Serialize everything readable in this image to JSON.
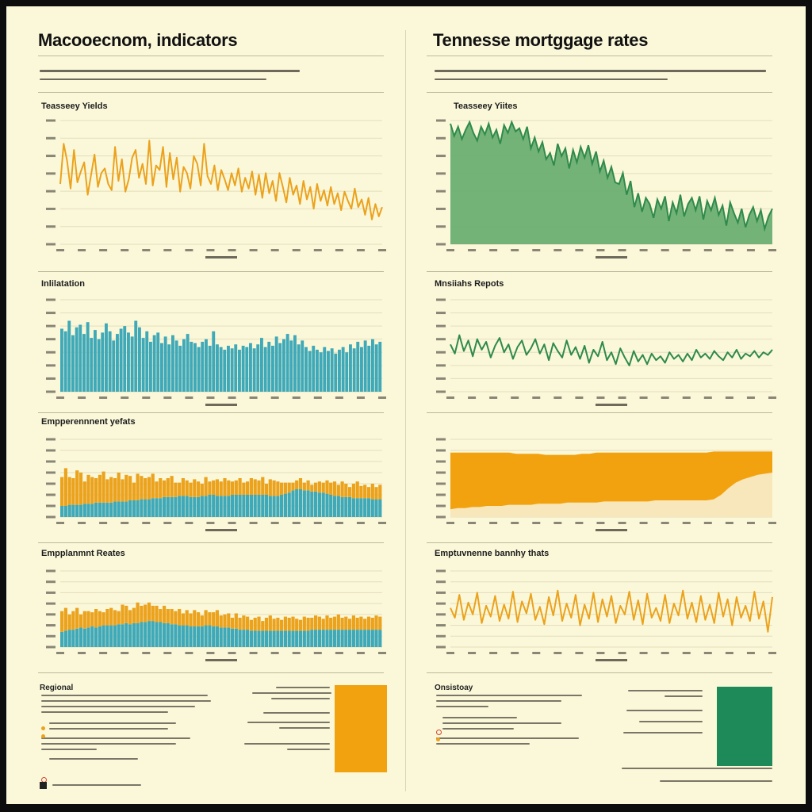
{
  "left": {
    "heading": "Macooecnom, indicators",
    "region_title": "Regional",
    "stat_values": [
      "",
      "",
      ""
    ]
  },
  "right": {
    "heading": "Tennesse mortggage rates",
    "region_title": "Onsistoay",
    "stat_values": [
      "",
      "",
      ""
    ]
  },
  "colors": {
    "orange": "#eba21d",
    "teal": "#3fa9b8",
    "green": "#2f8a4c",
    "green_fill": "#6caf72",
    "amber": "#f2a20f",
    "amber_light": "#f8e7bb",
    "background": "#fbf8da"
  },
  "chart_data": [
    {
      "id": "treasury-yields-left",
      "type": "line",
      "title": "Teasseey Yields",
      "color": "#eba21d",
      "ylim": [
        0,
        8
      ],
      "grid": true,
      "series": [
        {
          "values": [
            3.9,
            6.5,
            5.4,
            3.6,
            6.1,
            4.0,
            4.7,
            5.3,
            3.2,
            4.5,
            5.8,
            3.7,
            4.6,
            4.9,
            3.9,
            3.5,
            6.3,
            4.1,
            5.5,
            3.4,
            4.2,
            5.6,
            6.1,
            4.3,
            5.2,
            3.9,
            6.7,
            3.8,
            5.1,
            4.8,
            6.3,
            3.7,
            5.9,
            4.2,
            5.6,
            3.4,
            5.0,
            4.6,
            3.6,
            5.7,
            5.2,
            3.8,
            6.5,
            4.4,
            3.9,
            5.1,
            3.5,
            4.8,
            4.2,
            3.5,
            4.6,
            3.8,
            4.9,
            3.4,
            4.3,
            3.6,
            4.7,
            3.2,
            4.5,
            3.0,
            4.6,
            3.3,
            4.1,
            2.8,
            4.6,
            3.7,
            2.7,
            4.3,
            3.2,
            3.8,
            2.6,
            4.1,
            2.9,
            3.7,
            2.3,
            3.9,
            2.8,
            3.5,
            2.5,
            3.7,
            2.6,
            3.3,
            2.2,
            3.4,
            2.8,
            2.3,
            3.6,
            2.4,
            2.9,
            1.9,
            3.0,
            1.6,
            2.6,
            1.8,
            2.4
          ]
        }
      ]
    },
    {
      "id": "treasury-yields-right",
      "type": "area",
      "title": "Teasseey Yiites",
      "color": "#2f8a4c",
      "fill": "#6caf72",
      "ylim": [
        0,
        8
      ],
      "grid": true,
      "series": [
        {
          "values": [
            7.8,
            7.0,
            7.6,
            6.8,
            7.4,
            7.9,
            7.2,
            6.7,
            7.6,
            7.1,
            7.8,
            6.9,
            7.4,
            6.5,
            7.7,
            7.2,
            7.9,
            7.3,
            7.5,
            6.8,
            7.6,
            6.2,
            6.9,
            6.0,
            6.6,
            5.5,
            5.9,
            5.1,
            6.5,
            5.7,
            6.2,
            4.9,
            6.1,
            5.3,
            6.3,
            5.6,
            6.4,
            5.2,
            6.0,
            4.7,
            5.4,
            4.3,
            5.0,
            4.0,
            3.9,
            4.6,
            3.2,
            4.1,
            2.4,
            3.3,
            2.1,
            3.0,
            2.6,
            1.7,
            2.9,
            2.3,
            3.1,
            1.5,
            2.7,
            2.0,
            3.2,
            1.8,
            2.6,
            3.0,
            2.2,
            3.1,
            1.6,
            2.8,
            2.2,
            3.0,
            1.9,
            2.5,
            1.2,
            2.7,
            2.0,
            1.4,
            2.3,
            1.1,
            1.9,
            2.4,
            1.5,
            2.2,
            1.0,
            1.8,
            2.3
          ]
        }
      ]
    },
    {
      "id": "inflation",
      "type": "bar",
      "title": "Inlilatation",
      "color": "#3fa9b8",
      "ylim": [
        0,
        7
      ],
      "grid": true,
      "series": [
        {
          "values": [
            4.8,
            4.6,
            5.4,
            4.3,
            4.9,
            5.1,
            4.4,
            5.3,
            4.1,
            4.7,
            4.0,
            4.5,
            5.2,
            4.6,
            3.9,
            4.4,
            4.8,
            5.0,
            4.5,
            4.2,
            5.4,
            4.9,
            4.1,
            4.6,
            3.8,
            4.3,
            4.5,
            3.7,
            4.2,
            3.6,
            4.3,
            3.9,
            3.5,
            4.0,
            4.4,
            3.8,
            3.7,
            3.4,
            3.8,
            4.0,
            3.5,
            4.6,
            3.6,
            3.4,
            3.2,
            3.5,
            3.3,
            3.6,
            3.2,
            3.5,
            3.4,
            3.7,
            3.3,
            3.6,
            4.1,
            3.4,
            3.8,
            3.5,
            4.2,
            3.7,
            4.0,
            4.4,
            3.9,
            4.3,
            3.6,
            3.9,
            3.4,
            3.1,
            3.5,
            3.2,
            3.0,
            3.4,
            3.1,
            3.3,
            2.9,
            3.2,
            3.4,
            3.0,
            3.6,
            3.3,
            3.8,
            3.4,
            3.9,
            3.5,
            4.0,
            3.6,
            3.8
          ]
        }
      ]
    },
    {
      "id": "market-reports",
      "type": "line",
      "title": "Mnsiiahs Repots",
      "color": "#2f8a4c",
      "ylim": [
        0,
        7
      ],
      "grid": true,
      "series": [
        {
          "values": [
            3.6,
            2.9,
            4.3,
            3.1,
            3.9,
            2.7,
            4.0,
            3.2,
            3.8,
            2.6,
            3.5,
            4.1,
            3.0,
            3.6,
            2.5,
            3.4,
            3.9,
            2.8,
            3.3,
            4.0,
            2.9,
            3.6,
            2.4,
            3.7,
            3.1,
            2.6,
            3.9,
            2.8,
            3.4,
            2.5,
            3.5,
            2.2,
            3.2,
            2.7,
            3.8,
            2.4,
            3.0,
            2.1,
            3.3,
            2.6,
            2.0,
            3.1,
            2.3,
            2.8,
            2.1,
            2.9,
            2.4,
            2.7,
            2.2,
            3.0,
            2.5,
            2.8,
            2.3,
            2.9,
            2.4,
            3.2,
            2.6,
            2.9,
            2.5,
            3.1,
            2.7,
            2.4,
            3.0,
            2.6,
            3.2,
            2.5,
            2.9,
            2.7,
            3.1,
            2.6,
            3.0,
            2.8,
            3.2
          ]
        }
      ]
    },
    {
      "id": "employment-rates-left",
      "type": "bar",
      "stacked": true,
      "title": "Empperennnent yefats",
      "ylim": [
        0,
        7
      ],
      "grid": true,
      "series": [
        {
          "color": "#3fa9b8",
          "values": [
            1.0,
            1.0,
            1.1,
            1.1,
            1.1,
            1.1,
            1.2,
            1.2,
            1.2,
            1.3,
            1.3,
            1.3,
            1.3,
            1.3,
            1.4,
            1.4,
            1.4,
            1.4,
            1.5,
            1.5,
            1.5,
            1.6,
            1.6,
            1.6,
            1.7,
            1.7,
            1.7,
            1.8,
            1.8,
            1.8,
            1.8,
            1.9,
            1.9,
            1.9,
            1.8,
            1.8,
            1.8,
            1.9,
            1.9,
            2.0,
            2.0,
            1.9,
            1.9,
            1.9,
            1.9,
            2.0,
            2.0,
            2.0,
            2.0,
            2.0,
            2.0,
            2.0,
            2.0,
            2.0,
            2.0,
            1.9,
            1.9,
            1.9,
            2.0,
            2.1,
            2.2,
            2.4,
            2.5,
            2.5,
            2.4,
            2.4,
            2.3,
            2.3,
            2.2,
            2.2,
            2.1,
            2.0,
            1.9,
            1.9,
            1.8,
            1.8,
            1.8,
            1.7,
            1.7,
            1.7,
            1.7,
            1.7,
            1.6,
            1.6,
            1.6
          ]
        },
        {
          "color": "#eba21d",
          "values": [
            2.6,
            3.4,
            2.5,
            2.4,
            3.1,
            2.9,
            2.0,
            2.6,
            2.4,
            2.2,
            2.5,
            2.8,
            2.1,
            2.3,
            2.1,
            2.6,
            2.0,
            2.4,
            2.2,
            1.6,
            2.4,
            2.1,
            1.9,
            2.0,
            2.2,
            1.5,
            1.8,
            1.5,
            1.7,
            1.9,
            1.3,
            1.2,
            1.6,
            1.4,
            1.3,
            1.6,
            1.4,
            1.1,
            1.7,
            1.2,
            1.3,
            1.5,
            1.3,
            1.6,
            1.4,
            1.2,
            1.3,
            1.5,
            1.1,
            1.2,
            1.5,
            1.4,
            1.3,
            1.6,
            1.0,
            1.5,
            1.4,
            1.3,
            1.1,
            1.0,
            0.9,
            0.7,
            0.8,
            1.0,
            0.7,
            0.9,
            0.6,
            0.8,
            1.0,
            0.9,
            1.2,
            1.1,
            1.3,
            1.0,
            1.4,
            1.2,
            0.9,
            1.3,
            1.5,
            1.1,
            1.2,
            1.0,
            1.4,
            1.1,
            1.3
          ]
        }
      ]
    },
    {
      "id": "mortgage-rate-band",
      "type": "area",
      "title": "",
      "ylim": [
        0,
        7
      ],
      "grid": true,
      "series": [
        {
          "color": "#f8e7bb",
          "values": [
            0.7,
            0.8,
            0.8,
            0.9,
            0.9,
            1.0,
            1.0,
            1.0,
            1.1,
            1.1,
            1.1,
            1.1,
            1.2,
            1.2,
            1.2,
            1.2,
            1.3,
            1.3,
            1.3,
            1.3,
            1.3,
            1.4,
            1.4,
            1.4,
            1.4,
            1.4,
            1.4,
            1.4,
            1.5,
            1.5,
            1.5,
            1.5,
            1.5,
            1.5,
            1.5,
            1.5,
            1.6,
            2.0,
            2.6,
            3.1,
            3.4,
            3.6,
            3.8,
            3.9,
            4.0
          ]
        },
        {
          "color": "#f2a20f",
          "values": [
            5.8,
            5.8,
            5.8,
            5.8,
            5.8,
            5.8,
            5.8,
            5.8,
            5.8,
            5.7,
            5.7,
            5.7,
            5.7,
            5.6,
            5.6,
            5.6,
            5.6,
            5.6,
            5.7,
            5.7,
            5.8,
            5.8,
            5.8,
            5.8,
            5.8,
            5.8,
            5.8,
            5.8,
            5.8,
            5.8,
            5.8,
            5.8,
            5.8,
            5.8,
            5.8,
            5.8,
            5.9,
            5.9,
            5.9,
            5.9,
            5.9,
            5.9,
            5.9,
            5.9,
            5.9
          ]
        }
      ]
    },
    {
      "id": "employment-rates-left-2",
      "type": "bar",
      "stacked": true,
      "title": "Empplanmnt Reates",
      "ylim": [
        0,
        7
      ],
      "grid": true,
      "series": [
        {
          "color": "#3fa9b8",
          "values": [
            1.4,
            1.5,
            1.6,
            1.6,
            1.7,
            1.8,
            1.7,
            1.8,
            1.9,
            1.8,
            1.9,
            2.0,
            2.0,
            2.0,
            2.0,
            2.1,
            2.1,
            2.2,
            2.1,
            2.2,
            2.2,
            2.3,
            2.3,
            2.4,
            2.4,
            2.3,
            2.3,
            2.2,
            2.2,
            2.1,
            2.1,
            2.0,
            2.0,
            2.0,
            1.9,
            1.9,
            1.9,
            1.9,
            2.0,
            2.0,
            1.9,
            1.9,
            1.8,
            1.8,
            1.8,
            1.7,
            1.7,
            1.6,
            1.6,
            1.6,
            1.5,
            1.5,
            1.5,
            1.5,
            1.5,
            1.5,
            1.5,
            1.5,
            1.5,
            1.5,
            1.5,
            1.5,
            1.5,
            1.5,
            1.5,
            1.5,
            1.6,
            1.6,
            1.6,
            1.6,
            1.6,
            1.6,
            1.6,
            1.6,
            1.6,
            1.6,
            1.6,
            1.6,
            1.6,
            1.6,
            1.6,
            1.6,
            1.6,
            1.6,
            1.6
          ]
        },
        {
          "color": "#eba21d",
          "values": [
            1.9,
            2.1,
            1.4,
            1.7,
            1.9,
            1.2,
            1.6,
            1.5,
            1.3,
            1.7,
            1.4,
            1.2,
            1.5,
            1.6,
            1.4,
            1.2,
            1.8,
            1.6,
            1.3,
            1.4,
            1.9,
            1.5,
            1.6,
            1.7,
            1.4,
            1.5,
            1.2,
            1.6,
            1.3,
            1.4,
            1.2,
            1.5,
            1.1,
            1.4,
            1.2,
            1.5,
            1.3,
            1.0,
            1.4,
            1.2,
            1.3,
            1.5,
            1.1,
            1.2,
            1.3,
            1.0,
            1.4,
            1.1,
            1.3,
            1.2,
            1.0,
            1.2,
            1.3,
            0.9,
            1.2,
            1.4,
            1.1,
            1.2,
            1.0,
            1.3,
            1.2,
            1.3,
            1.1,
            1.0,
            1.3,
            1.2,
            1.1,
            1.3,
            1.2,
            1.0,
            1.3,
            1.1,
            1.2,
            1.4,
            1.1,
            1.2,
            1.0,
            1.3,
            1.1,
            1.2,
            1.0,
            1.2,
            1.1,
            1.3,
            1.2
          ]
        }
      ]
    },
    {
      "id": "employment-monthly",
      "type": "line",
      "title": "Emptuvnenne bannhy thats",
      "color": "#eba21d",
      "ylim": [
        0,
        7
      ],
      "grid": true,
      "series": [
        {
          "values": [
            3.6,
            2.7,
            4.8,
            2.5,
            4.1,
            3.0,
            5.0,
            2.2,
            3.8,
            2.8,
            4.7,
            2.4,
            3.9,
            2.6,
            5.1,
            2.3,
            4.2,
            3.1,
            4.9,
            2.5,
            3.7,
            2.1,
            4.6,
            2.9,
            5.2,
            2.4,
            4.0,
            2.7,
            4.8,
            2.0,
            3.9,
            2.6,
            5.0,
            2.3,
            4.4,
            2.8,
            4.7,
            2.2,
            3.8,
            3.0,
            5.1,
            2.5,
            4.3,
            2.1,
            4.9,
            2.7,
            3.6,
            2.4,
            4.8,
            2.2,
            4.0,
            2.9,
            5.2,
            2.6,
            4.1,
            2.3,
            4.7,
            2.5,
            3.9,
            2.2,
            5.0,
            2.8,
            4.4,
            2.0,
            4.6,
            2.7,
            3.8,
            2.4,
            5.1,
            2.6,
            4.2,
            1.4,
            4.6
          ]
        }
      ]
    }
  ]
}
